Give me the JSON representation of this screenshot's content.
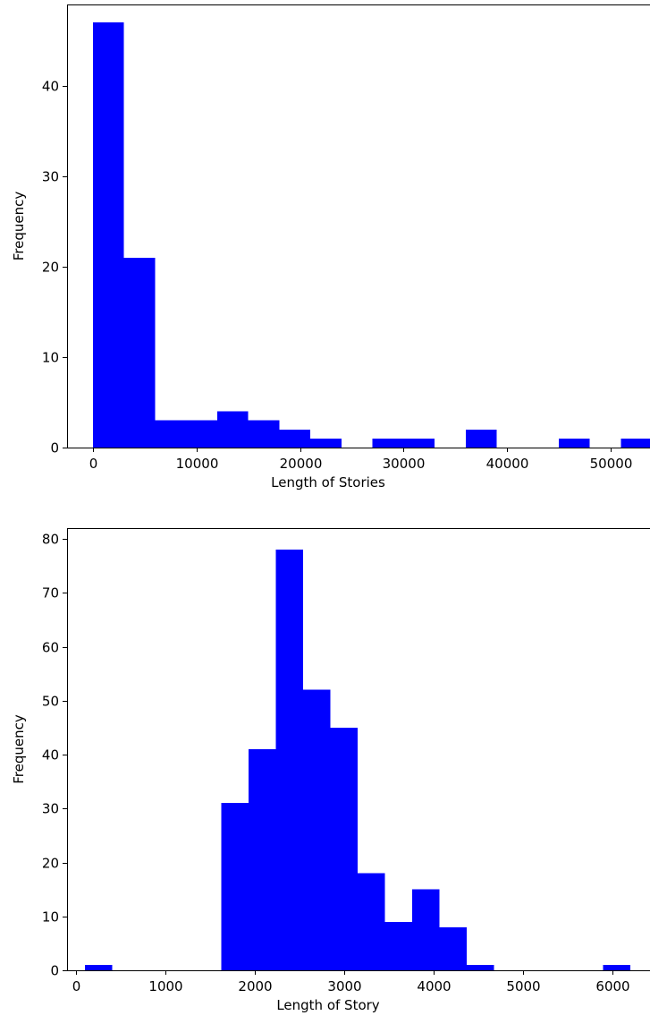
{
  "colors": {
    "bar": "#0000ff",
    "axis": "#000000",
    "background": "#ffffff"
  },
  "chart_data": [
    {
      "type": "bar",
      "subtype": "histogram",
      "title": "",
      "xlabel": "Length of Stories",
      "ylabel": "Frequency",
      "xlim": [
        -2500,
        54500
      ],
      "ylim": [
        0,
        49
      ],
      "xticks": [
        0,
        10000,
        20000,
        30000,
        40000,
        50000
      ],
      "yticks": [
        0,
        10,
        20,
        30,
        40
      ],
      "grid": false,
      "bin_edges": [
        0,
        3000,
        6000,
        9000,
        12000,
        15000,
        18000,
        21000,
        24000,
        27000,
        30000,
        33000,
        36000,
        39000,
        42000,
        45000,
        48000,
        51000,
        54000
      ],
      "values": [
        47,
        21,
        3,
        3,
        4,
        3,
        2,
        1,
        0,
        1,
        1,
        0,
        2,
        0,
        0,
        1,
        0,
        1
      ]
    },
    {
      "type": "bar",
      "subtype": "histogram",
      "title": "",
      "xlabel": "Length of Story",
      "ylabel": "Frequency",
      "xlim": [
        -100,
        6500
      ],
      "ylim": [
        0,
        82
      ],
      "xticks": [
        0,
        1000,
        2000,
        3000,
        4000,
        5000,
        6000
      ],
      "yticks": [
        0,
        10,
        20,
        30,
        40,
        50,
        60,
        70,
        80
      ],
      "grid": false,
      "bin_edges": [
        100,
        405,
        710,
        1015,
        1320,
        1625,
        1930,
        2235,
        2540,
        2845,
        3150,
        3455,
        3760,
        4065,
        4370,
        4675,
        4980,
        5285,
        5590,
        5895,
        6200
      ],
      "values": [
        1,
        0,
        0,
        0,
        0,
        31,
        41,
        78,
        52,
        45,
        18,
        9,
        15,
        8,
        1,
        0,
        0,
        0,
        0,
        1
      ]
    }
  ]
}
